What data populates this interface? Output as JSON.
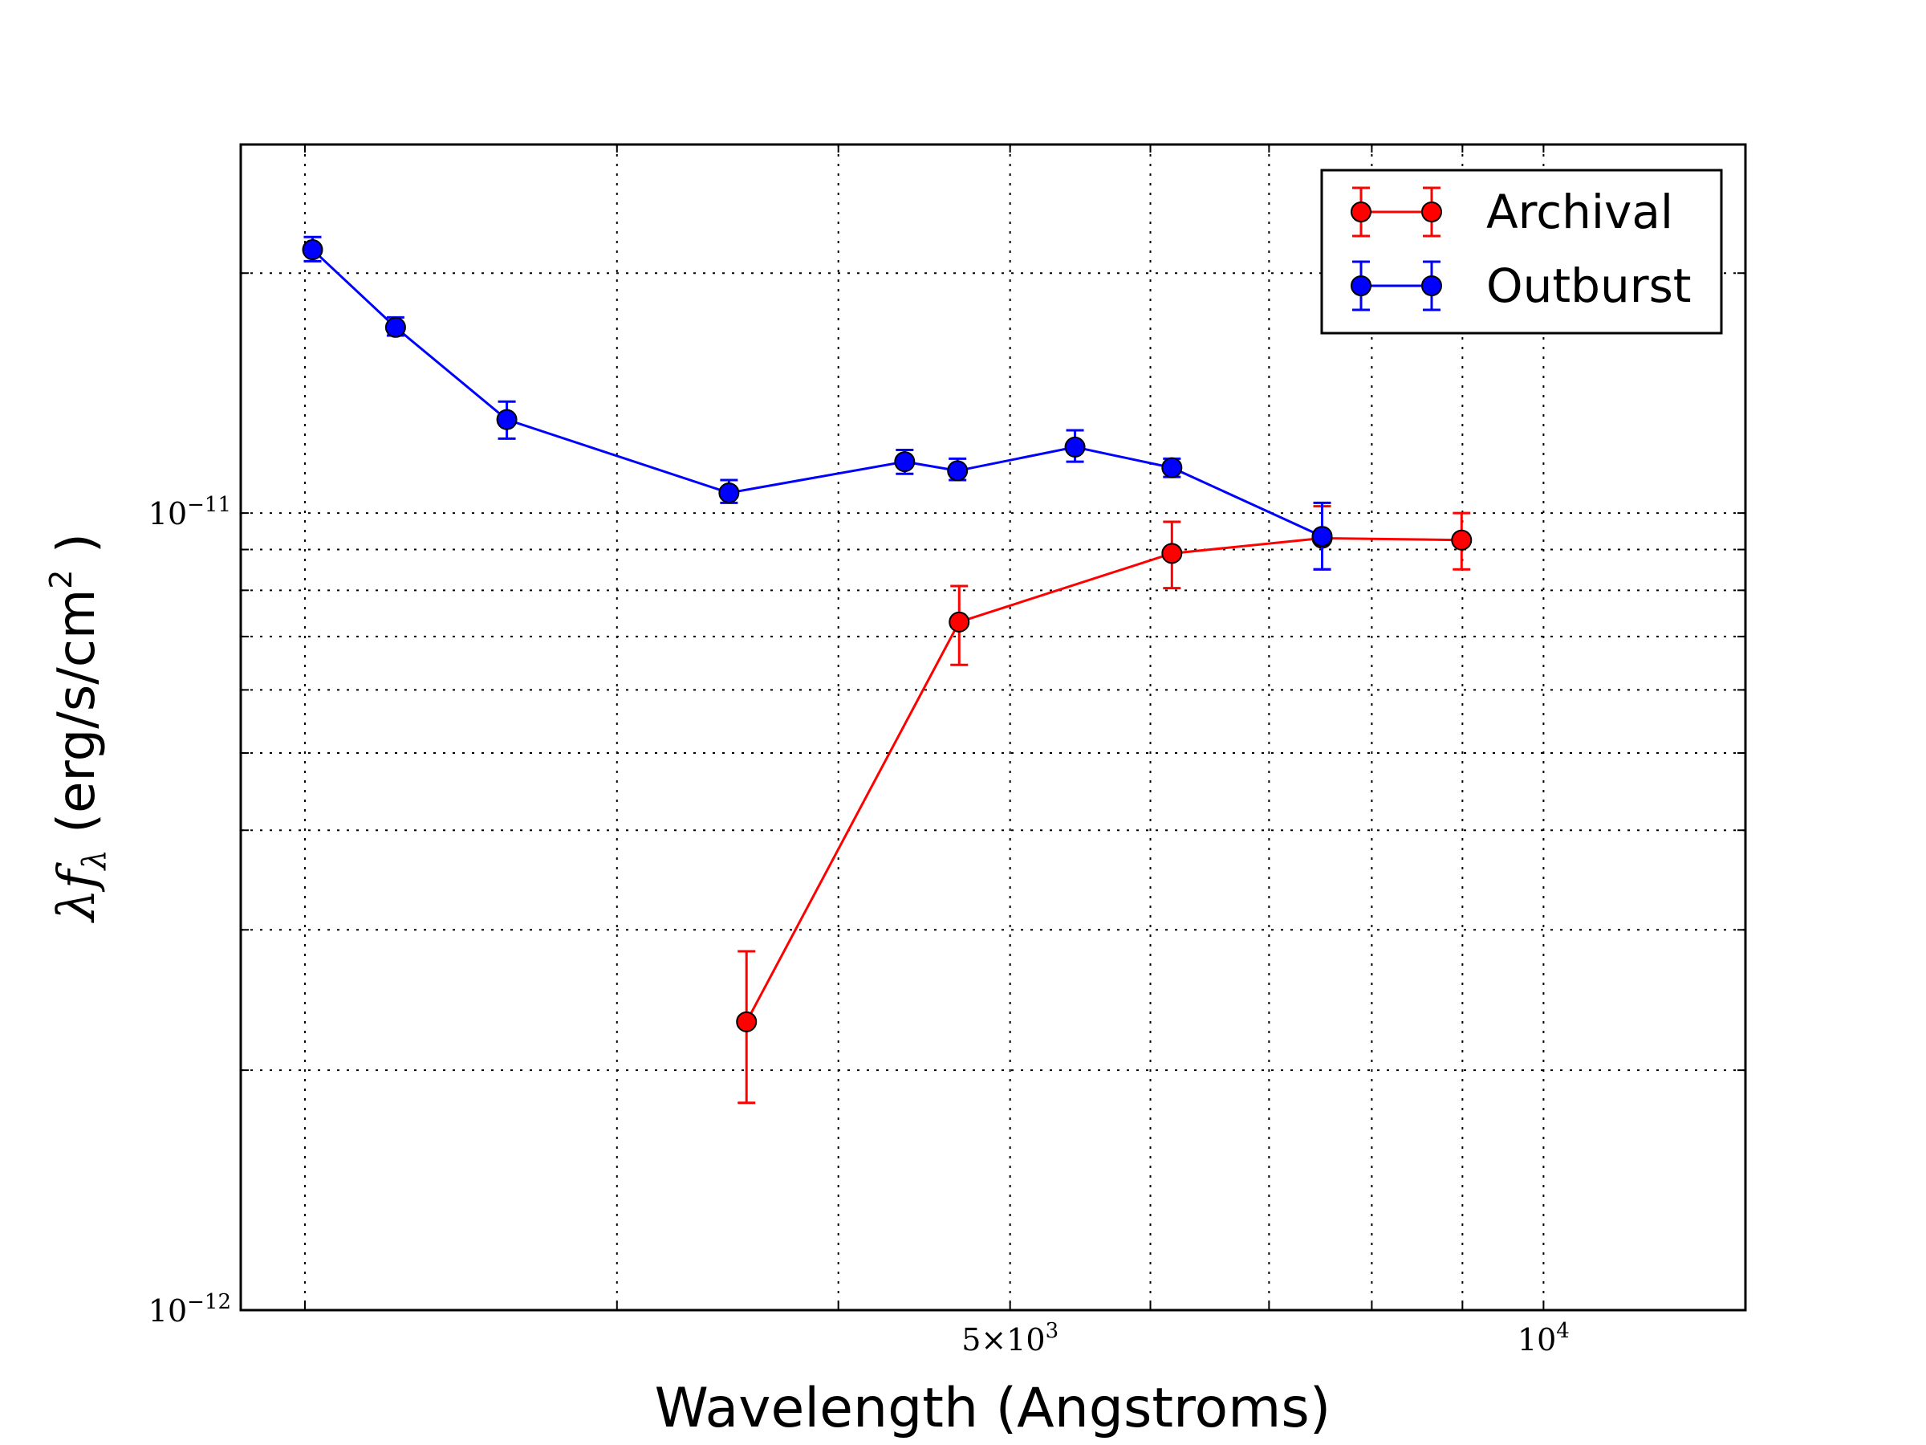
{
  "chart_data": {
    "type": "line",
    "xlabel": "Wavelength (Angstroms)",
    "ylabel": {
      "text": "(erg/s/cm",
      "superscript": "2",
      "close": " )"
    },
    "x_scale": "log",
    "y_scale": "log",
    "xlim": [
      1840,
      13000
    ],
    "ylim": [
      1e-12,
      2.9e-11
    ],
    "grid": true,
    "legend_position": "top-right",
    "x_ticks": [
      {
        "value": 5000,
        "label_main": "5×10",
        "label_exp": "3"
      },
      {
        "value": 10000,
        "label_main": "10",
        "label_exp": "4"
      }
    ],
    "x_minor_grid": [
      2000,
      3000,
      4000,
      6000,
      7000,
      8000,
      9000
    ],
    "y_ticks": [
      {
        "value": 1e-12,
        "label_main": "10",
        "label_exp": "−12"
      },
      {
        "value": 1e-11,
        "label_main": "10",
        "label_exp": "−11"
      }
    ],
    "y_minor_grid": [
      2e-12,
      3e-12,
      4e-12,
      5e-12,
      6e-12,
      7e-12,
      8e-12,
      9e-12,
      2e-11
    ],
    "series": [
      {
        "name": "Archival",
        "color": "#ff0000",
        "points": [
          {
            "x": 3550,
            "y": 2.3e-12,
            "err_low": 1.82e-12,
            "err_high": 2.82e-12
          },
          {
            "x": 4680,
            "y": 7.3e-12,
            "err_low": 6.45e-12,
            "err_high": 8.1e-12
          },
          {
            "x": 6170,
            "y": 8.9e-12,
            "err_low": 8.05e-12,
            "err_high": 9.75e-12
          },
          {
            "x": 7500,
            "y": 9.3e-12,
            "err_low": 8.5e-12,
            "err_high": 1.02e-11
          },
          {
            "x": 8990,
            "y": 9.25e-12,
            "err_low": 8.5e-12,
            "err_high": 1e-11
          }
        ]
      },
      {
        "name": "Outburst",
        "color": "#0000ff",
        "points": [
          {
            "x": 2020,
            "y": 2.14e-11,
            "err_low": 2.07e-11,
            "err_high": 2.22e-11
          },
          {
            "x": 2250,
            "y": 1.71e-11,
            "err_low": 1.67e-11,
            "err_high": 1.76e-11
          },
          {
            "x": 2600,
            "y": 1.31e-11,
            "err_low": 1.24e-11,
            "err_high": 1.38e-11
          },
          {
            "x": 3470,
            "y": 1.06e-11,
            "err_low": 1.03e-11,
            "err_high": 1.1e-11
          },
          {
            "x": 4360,
            "y": 1.16e-11,
            "err_low": 1.12e-11,
            "err_high": 1.2e-11
          },
          {
            "x": 4670,
            "y": 1.13e-11,
            "err_low": 1.1e-11,
            "err_high": 1.17e-11
          },
          {
            "x": 5440,
            "y": 1.21e-11,
            "err_low": 1.16e-11,
            "err_high": 1.27e-11
          },
          {
            "x": 6170,
            "y": 1.14e-11,
            "err_low": 1.11e-11,
            "err_high": 1.17e-11
          },
          {
            "x": 7500,
            "y": 9.35e-12,
            "err_low": 8.5e-12,
            "err_high": 1.03e-11
          }
        ]
      }
    ]
  }
}
